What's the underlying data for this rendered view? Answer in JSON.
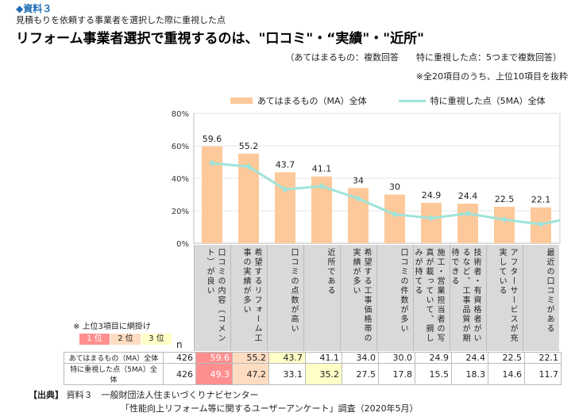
{
  "header": {
    "doc_label": "◆資料３",
    "subtitle": "見積もりを依頼する事業者を選択した際に重視した点",
    "title": "リフォーム事業者選択で重視するのは、\"口コミ\"・“実績\"・\"近所\"",
    "note_answer": "（あてはまるもの：複数回答　　特に重視した点：5つまで複数回答）",
    "note_scope": "※全20項目のうち、上位10項目を抜粋"
  },
  "chart_data": {
    "type": "bar+line",
    "categories": [
      "口コミの内容（コメント）が良い",
      "希望するリフォーム工事の実績が多い",
      "口コミの点数が高い",
      "近所である",
      "希望する工事価格帯の実績が多い",
      "口コミの件数が多い",
      "施工・営業担当者の写真が載っていて、親しみが持てる",
      "技術者・有資格者がいるなど、工事品質が期待できる",
      "アフターサービスが充実している",
      "最近の口コミがある"
    ],
    "series": [
      {
        "name": "あてはまるもの（MA）全体",
        "type": "bar",
        "color": "#fdc99a",
        "values": [
          59.6,
          55.2,
          43.7,
          41.1,
          34.0,
          30.0,
          24.9,
          24.4,
          22.5,
          22.1
        ]
      },
      {
        "name": "特に重視した点（5MA）全体",
        "type": "line",
        "color": "#9ee3d9",
        "values": [
          49.3,
          47.2,
          33.1,
          35.2,
          27.5,
          17.8,
          15.5,
          18.3,
          14.6,
          11.7
        ]
      }
    ],
    "y_ticks": [
      "0%",
      "20%",
      "40%",
      "60%",
      "80%"
    ],
    "ylim": [
      0,
      80
    ],
    "grid": true,
    "legend": "top"
  },
  "table": {
    "rank_note": "※ 上位3項目に網掛け",
    "ranks": [
      "1 位",
      "2 位",
      "3 位"
    ],
    "n_header": "n",
    "rows": [
      {
        "label": "あてはまるもの（MA）全体",
        "n": "426",
        "values": [
          "59.6",
          "55.2",
          "43.7",
          "41.1",
          "34.0",
          "30.0",
          "24.9",
          "24.4",
          "22.5",
          "22.1"
        ],
        "rank": [
          1,
          2,
          3,
          0,
          0,
          0,
          0,
          0,
          0,
          0
        ]
      },
      {
        "label": "特に重視した点（5MA）全体",
        "n": "426",
        "values": [
          "49.3",
          "47.2",
          "33.1",
          "35.2",
          "27.5",
          "17.8",
          "15.5",
          "18.3",
          "14.6",
          "11.7"
        ],
        "rank": [
          1,
          2,
          0,
          3,
          0,
          0,
          0,
          0,
          0,
          0
        ]
      }
    ]
  },
  "source": {
    "label": "【出典】",
    "line1": "資料３　一般財団法人住まいづくりナビセンター",
    "line2": "「性能向上リフォーム等に関するユーザーアンケート」調査（2020年5月）"
  }
}
